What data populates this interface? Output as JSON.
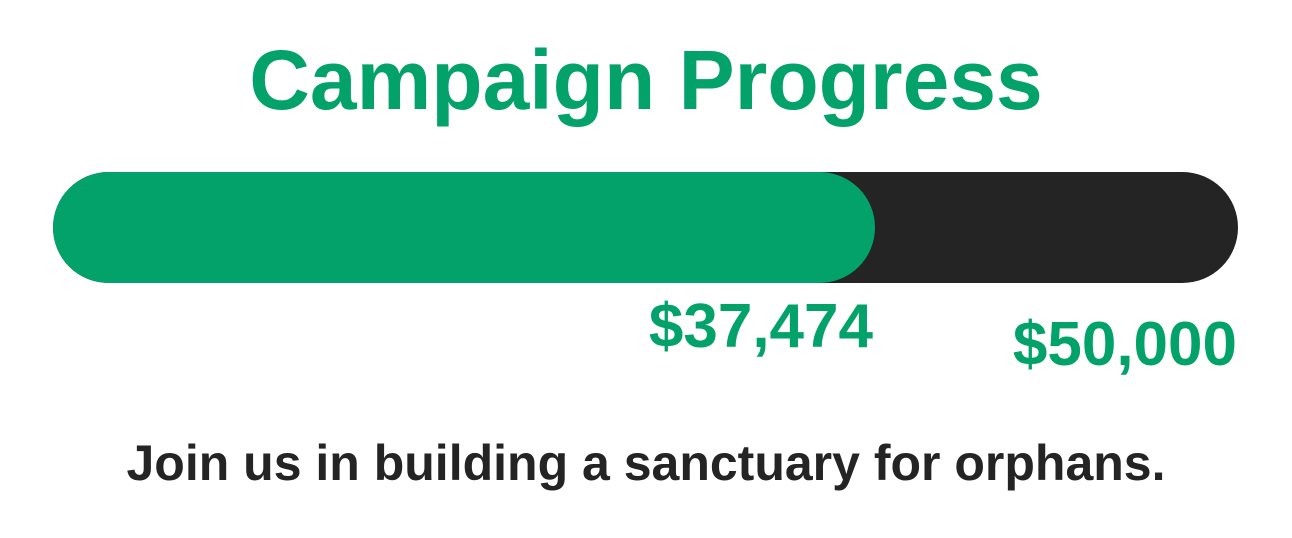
{
  "title": "Campaign Progress",
  "progress": {
    "raised_label": "$37,474",
    "goal_label": "$50,000",
    "raised": 37474,
    "goal": 50000
  },
  "tagline": "Join us in building a sanctuary for orphans.",
  "colors": {
    "accent": "#02a26a",
    "track": "#242424",
    "text": "#242424"
  }
}
